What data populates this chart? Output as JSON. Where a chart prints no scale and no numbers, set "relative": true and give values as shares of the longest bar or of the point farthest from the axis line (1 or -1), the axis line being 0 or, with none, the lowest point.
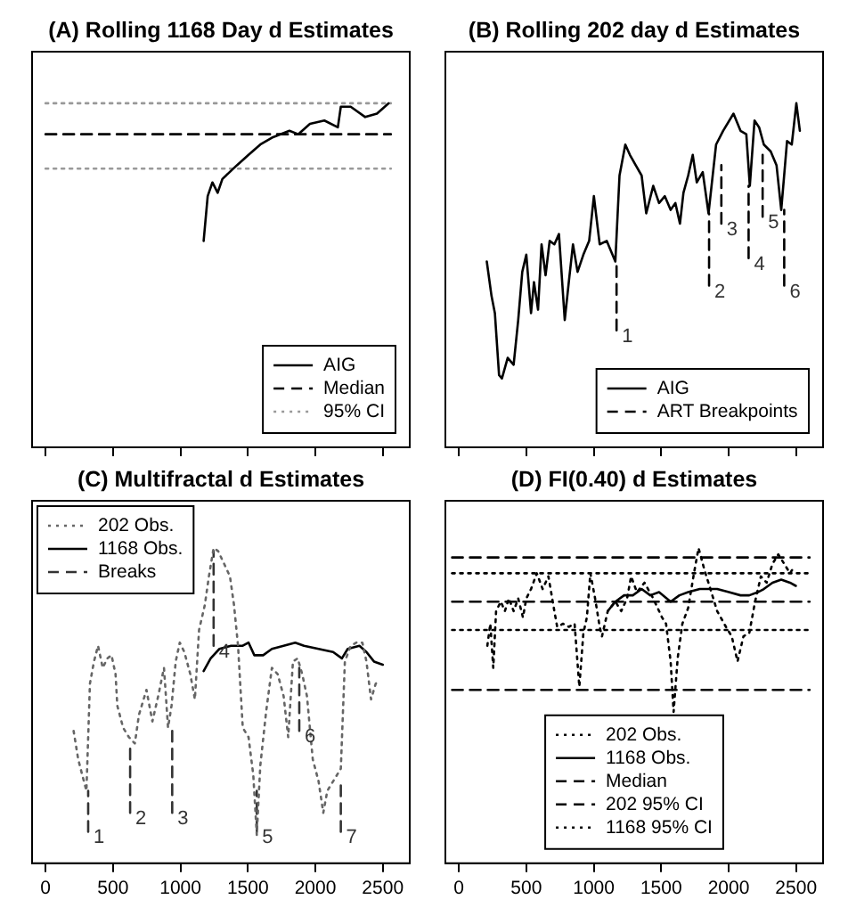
{
  "chart_data": [
    {
      "type": "line",
      "title": "(A) Rolling 1168 Day d Estimates",
      "relative": true,
      "xlim": [
        -100,
        2700
      ],
      "xticks": [
        0,
        500,
        1000,
        1500,
        2000,
        2500
      ],
      "tick_labels": false,
      "legend": "bottom right",
      "series": [
        {
          "name": "AIG",
          "color": "#000000",
          "line_style": "solid",
          "x": [
            1172,
            1202,
            1237,
            1276,
            1311,
            1419,
            1505,
            1592,
            1678,
            1808,
            1873,
            1960,
            2067,
            2167,
            2189,
            2262,
            2370,
            2457,
            2543
          ],
          "values": [
            0.6,
            0.73,
            0.77,
            0.74,
            0.78,
            0.82,
            0.85,
            0.88,
            0.9,
            0.92,
            0.91,
            0.94,
            0.95,
            0.93,
            0.99,
            0.99,
            0.96,
            0.97,
            1.0
          ]
        },
        {
          "name": "Median",
          "color": "#000000",
          "line_style": "dashed",
          "x": [
            0,
            2560
          ],
          "values": [
            0.91,
            0.91
          ]
        },
        {
          "name": "95% CI",
          "color": "#999999",
          "line_style": "dotted",
          "x": [
            0,
            2560
          ],
          "values": [
            1.0,
            1.0
          ]
        },
        {
          "color": "#999999",
          "line_style": "dotted",
          "x": [
            0,
            2560
          ],
          "values": [
            0.81,
            0.81
          ]
        }
      ]
    },
    {
      "type": "line",
      "title": "(B) Rolling 202 day d Estimates",
      "relative": true,
      "xlim": [
        -100,
        2700
      ],
      "xticks": [
        0,
        500,
        1000,
        1500,
        2000,
        2500
      ],
      "tick_labels": false,
      "legend": "bottom right",
      "series": [
        {
          "name": "AIG",
          "color": "#000000",
          "line_style": "solid",
          "x": [
            207,
            242,
            267,
            298,
            319,
            362,
            406,
            440,
            470,
            500,
            535,
            557,
            587,
            613,
            643,
            673,
            708,
            742,
            785,
            815,
            846,
            880,
            923,
            966,
            1001,
            1044,
            1096,
            1160,
            1191,
            1234,
            1268,
            1311,
            1355,
            1389,
            1441,
            1484,
            1527,
            1570,
            1605,
            1639,
            1665,
            1700,
            1734,
            1764,
            1808,
            1851,
            1907,
            1959,
            2036,
            2088,
            2131,
            2157,
            2192,
            2226,
            2261,
            2312,
            2355,
            2390,
            2433,
            2468,
            2502,
            2528
          ],
          "values": [
            0.54,
            0.44,
            0.39,
            0.21,
            0.2,
            0.26,
            0.24,
            0.37,
            0.51,
            0.56,
            0.39,
            0.48,
            0.4,
            0.59,
            0.5,
            0.6,
            0.59,
            0.62,
            0.37,
            0.48,
            0.59,
            0.51,
            0.56,
            0.6,
            0.73,
            0.59,
            0.6,
            0.54,
            0.79,
            0.88,
            0.85,
            0.82,
            0.79,
            0.68,
            0.76,
            0.71,
            0.73,
            0.69,
            0.71,
            0.65,
            0.74,
            0.79,
            0.85,
            0.77,
            0.8,
            0.68,
            0.88,
            0.92,
            0.97,
            0.92,
            0.91,
            0.76,
            0.95,
            0.93,
            0.88,
            0.86,
            0.82,
            0.69,
            0.89,
            0.88,
            1.0,
            0.92
          ]
        },
        {
          "name": "ART Breakpoints",
          "color": "#000000",
          "line_style": "dashed",
          "x": [
            1169,
            1169
          ],
          "values": [
            0.34,
            0.54
          ]
        },
        {
          "color": "#000000",
          "line_style": "dashed",
          "x": [
            1855,
            1855
          ],
          "values": [
            0.47,
            0.68
          ]
        },
        {
          "color": "#000000",
          "line_style": "dashed",
          "x": [
            1946,
            1946
          ],
          "values": [
            0.65,
            0.82
          ]
        },
        {
          "color": "#000000",
          "line_style": "dashed",
          "x": [
            2148,
            2148
          ],
          "values": [
            0.55,
            0.76
          ]
        },
        {
          "color": "#000000",
          "line_style": "dashed",
          "x": [
            2252,
            2252
          ],
          "values": [
            0.67,
            0.85
          ]
        },
        {
          "color": "#000000",
          "line_style": "dashed",
          "x": [
            2412,
            2412
          ],
          "values": [
            0.47,
            0.69
          ]
        }
      ],
      "annotations": [
        {
          "text": "1",
          "x": 1169,
          "y": 0.34
        },
        {
          "text": "2",
          "x": 1855,
          "y": 0.47
        },
        {
          "text": "3",
          "x": 1946,
          "y": 0.65
        },
        {
          "text": "4",
          "x": 2148,
          "y": 0.55
        },
        {
          "text": "5",
          "x": 2252,
          "y": 0.67
        },
        {
          "text": "6",
          "x": 2412,
          "y": 0.47
        }
      ]
    },
    {
      "type": "line",
      "title": "(C) Multifractal d Estimates",
      "relative": true,
      "xlim": [
        -100,
        2700
      ],
      "xticks": [
        0,
        500,
        1000,
        1500,
        2000,
        2500
      ],
      "tick_labels": "x",
      "legend": "top left",
      "series": [
        {
          "name": "202 Obs.",
          "color": "#666666",
          "line_style": "dotted",
          "x": [
            208,
            242,
            272,
            303,
            329,
            359,
            389,
            424,
            458,
            489,
            519,
            532,
            575,
            618,
            662,
            692,
            748,
            792,
            835,
            878,
            908,
            934,
            965,
            995,
            1029,
            1073,
            1107,
            1138,
            1181,
            1211,
            1246,
            1280,
            1324,
            1367,
            1397,
            1427,
            1462,
            1505,
            1540,
            1566,
            1592,
            1635,
            1678,
            1721,
            1765,
            1799,
            1834,
            1869,
            1903,
            1938,
            1981,
            2024,
            2059,
            2089,
            2132,
            2189,
            2219,
            2262,
            2305,
            2349,
            2379,
            2413,
            2448,
            2478
          ],
          "values": [
            0.42,
            0.33,
            0.28,
            0.23,
            0.57,
            0.64,
            0.69,
            0.62,
            0.65,
            0.66,
            0.6,
            0.5,
            0.43,
            0.4,
            0.38,
            0.47,
            0.55,
            0.45,
            0.53,
            0.62,
            0.43,
            0.5,
            0.64,
            0.7,
            0.67,
            0.6,
            0.52,
            0.74,
            0.82,
            0.91,
            1.0,
            0.99,
            0.95,
            0.91,
            0.82,
            0.69,
            0.43,
            0.4,
            0.28,
            0.09,
            0.31,
            0.48,
            0.62,
            0.6,
            0.53,
            0.4,
            0.64,
            0.65,
            0.6,
            0.53,
            0.33,
            0.26,
            0.16,
            0.23,
            0.26,
            0.3,
            0.64,
            0.69,
            0.7,
            0.7,
            0.64,
            0.52,
            0.57,
            0.58
          ]
        },
        {
          "name": "1168 Obs.",
          "color": "#000000",
          "line_style": "solid",
          "x": [
            1172,
            1224,
            1289,
            1375,
            1462,
            1505,
            1548,
            1613,
            1678,
            1765,
            1851,
            1916,
            2024,
            2132,
            2197,
            2240,
            2327,
            2379,
            2435,
            2500
          ],
          "values": [
            0.61,
            0.65,
            0.68,
            0.69,
            0.69,
            0.7,
            0.66,
            0.66,
            0.68,
            0.69,
            0.7,
            0.69,
            0.68,
            0.67,
            0.65,
            0.68,
            0.69,
            0.67,
            0.64,
            0.63
          ]
        },
        {
          "name": "Breaks",
          "color": "#333333",
          "line_style": "dashed",
          "x": [
            316,
            316
          ],
          "values": [
            0.1,
            0.23
          ]
        },
        {
          "color": "#333333",
          "line_style": "dashed",
          "x": [
            627,
            627
          ],
          "values": [
            0.16,
            0.38
          ]
        },
        {
          "color": "#333333",
          "line_style": "dashed",
          "x": [
            939,
            939
          ],
          "values": [
            0.16,
            0.43
          ]
        },
        {
          "color": "#333333",
          "line_style": "dashed",
          "x": [
            1246,
            1246
          ],
          "values": [
            0.69,
            0.99
          ]
        },
        {
          "color": "#333333",
          "line_style": "dashed",
          "x": [
            1566,
            1566
          ],
          "values": [
            0.1,
            0.23
          ]
        },
        {
          "color": "#333333",
          "line_style": "dashed",
          "x": [
            1881,
            1881
          ],
          "values": [
            0.42,
            0.62
          ]
        },
        {
          "color": "#333333",
          "line_style": "dashed",
          "x": [
            2189,
            2189
          ],
          "values": [
            0.1,
            0.26
          ]
        }
      ],
      "annotations": [
        {
          "text": "1",
          "x": 316,
          "y": 0.1
        },
        {
          "text": "2",
          "x": 627,
          "y": 0.16
        },
        {
          "text": "3",
          "x": 939,
          "y": 0.16
        },
        {
          "text": "4",
          "x": 1246,
          "y": 0.69
        },
        {
          "text": "5",
          "x": 1566,
          "y": 0.1
        },
        {
          "text": "6",
          "x": 1881,
          "y": 0.42
        },
        {
          "text": "7",
          "x": 2189,
          "y": 0.1
        }
      ]
    },
    {
      "type": "line",
      "title": "(D) FI(0.40) d Estimates",
      "relative": true,
      "xlim": [
        -100,
        2700
      ],
      "xticks": [
        0,
        500,
        1000,
        1500,
        2000,
        2500
      ],
      "tick_labels": "x",
      "legend": "bottom",
      "series": [
        {
          "name": "202 Obs.",
          "color": "#000000",
          "line_style": "dotted",
          "x": [
            211,
            233,
            255,
            276,
            311,
            341,
            371,
            406,
            440,
            475,
            500,
            535,
            578,
            621,
            664,
            708,
            729,
            772,
            815,
            858,
            893,
            923,
            949,
            975,
            1010,
            1044,
            1061,
            1104,
            1160,
            1204,
            1247,
            1277,
            1320,
            1376,
            1441,
            1506,
            1536,
            1570,
            1592,
            1622,
            1657,
            1700,
            1743,
            1777,
            1821,
            1872,
            1915,
            1980,
            2023,
            2066,
            2110,
            2153,
            2196,
            2239,
            2282,
            2325,
            2368,
            2412,
            2455,
            2485
          ],
          "values": [
            0.69,
            0.76,
            0.62,
            0.8,
            0.83,
            0.8,
            0.84,
            0.8,
            0.84,
            0.78,
            0.84,
            0.87,
            0.92,
            0.87,
            0.91,
            0.8,
            0.75,
            0.76,
            0.75,
            0.76,
            0.56,
            0.73,
            0.78,
            0.92,
            0.84,
            0.75,
            0.72,
            0.8,
            0.83,
            0.8,
            0.84,
            0.91,
            0.86,
            0.89,
            0.84,
            0.78,
            0.76,
            0.64,
            0.48,
            0.65,
            0.76,
            0.81,
            0.92,
            1.0,
            0.93,
            0.86,
            0.8,
            0.75,
            0.72,
            0.64,
            0.72,
            0.73,
            0.83,
            0.91,
            0.89,
            0.95,
            0.98,
            0.95,
            0.92,
            0.94
          ]
        },
        {
          "name": "1168 Obs.",
          "color": "#000000",
          "line_style": "solid",
          "x": [
            1104,
            1160,
            1225,
            1290,
            1355,
            1419,
            1484,
            1570,
            1635,
            1700,
            1786,
            1915,
            2002,
            2088,
            2153,
            2217,
            2261,
            2325,
            2390,
            2455,
            2498
          ],
          "values": [
            0.8,
            0.83,
            0.85,
            0.85,
            0.87,
            0.85,
            0.86,
            0.83,
            0.85,
            0.86,
            0.87,
            0.87,
            0.86,
            0.85,
            0.85,
            0.86,
            0.87,
            0.89,
            0.9,
            0.89,
            0.88
          ]
        },
        {
          "name": "Median",
          "color": "#000000",
          "line_style": "dashed",
          "x": [
            -50,
            2600
          ],
          "values": [
            0.83,
            0.83
          ]
        },
        {
          "name": "202 95% CI",
          "color": "#000000",
          "line_style": "dashed",
          "x": [
            -50,
            2600
          ],
          "values": [
            0.97,
            0.97
          ]
        },
        {
          "color": "#000000",
          "line_style": "dashed",
          "x": [
            -50,
            2600
          ],
          "values": [
            0.55,
            0.55
          ]
        },
        {
          "name": "1168 95% CI",
          "color": "#000000",
          "line_style": "dotted",
          "x": [
            -50,
            2600
          ],
          "values": [
            0.92,
            0.92
          ]
        },
        {
          "color": "#000000",
          "line_style": "dotted",
          "x": [
            -50,
            2600
          ],
          "values": [
            0.74,
            0.74
          ]
        }
      ]
    }
  ]
}
